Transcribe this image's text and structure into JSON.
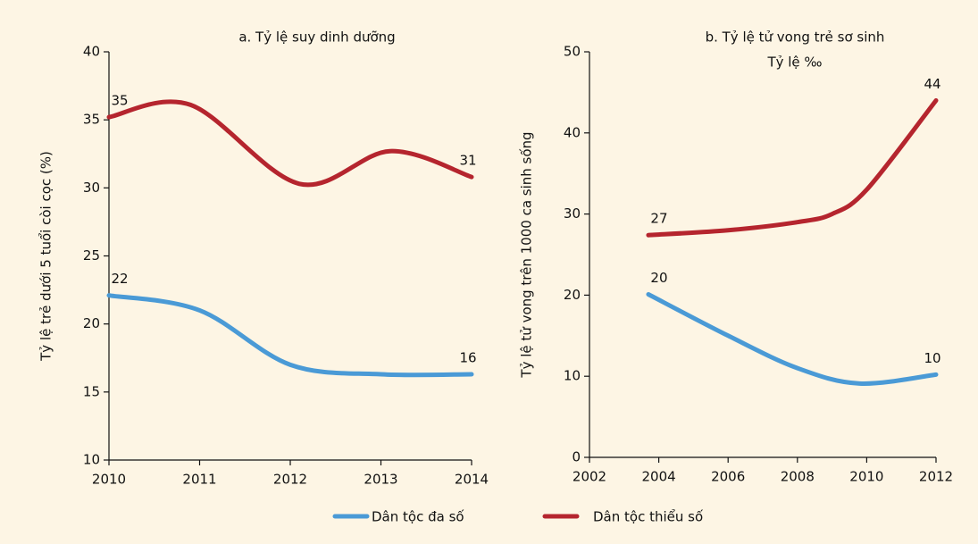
{
  "chart_data": [
    {
      "type": "line",
      "title": "a. Tỷ lệ suy dinh dưỡng",
      "y_label": "Tỷ lệ trẻ dưới 5 tuổi còi cọc (%)",
      "xlim": [
        2010,
        2014
      ],
      "xticks": [
        2010,
        2011,
        2012,
        2013,
        2014
      ],
      "ylim": [
        10,
        40
      ],
      "yticks": [
        10,
        15,
        20,
        25,
        30,
        35,
        40
      ],
      "series": [
        {
          "name": "Dân tộc đa số",
          "color": "#4a9ad6",
          "x": [
            2010,
            2011,
            2012,
            2013,
            2014
          ],
          "values": [
            22.1,
            21,
            17,
            16.3,
            16.3
          ],
          "value_labels": [
            "22",
            null,
            null,
            null,
            "16"
          ]
        },
        {
          "name": "Dân tộc thiểu số",
          "color": "#b5252e",
          "x": [
            2010,
            2010.9,
            2012.1,
            2013.1,
            2014
          ],
          "values": [
            35.2,
            36.1,
            30.3,
            32.7,
            30.8
          ],
          "value_labels": [
            "35",
            null,
            null,
            null,
            "31"
          ]
        }
      ]
    },
    {
      "type": "line",
      "title": "b. Tỷ lệ tử vong trẻ sơ sinh",
      "subtitle": "Tỷ lệ ‰",
      "y_label": "Tỷ lệ tử vong trên 1000 ca sinh sống",
      "xlim": [
        2002,
        2012
      ],
      "xticks": [
        2002,
        2004,
        2006,
        2008,
        2010,
        2012
      ],
      "ylim": [
        0,
        50
      ],
      "yticks": [
        0,
        10,
        20,
        30,
        40,
        50
      ],
      "series": [
        {
          "color": "#4a9ad6",
          "x": [
            2003.7,
            2006,
            2008,
            2009.8,
            2012
          ],
          "values": [
            20.1,
            15,
            11,
            9.1,
            10.2
          ],
          "value_labels": [
            "20",
            null,
            null,
            null,
            "10"
          ]
        },
        {
          "color": "#b5252e",
          "x": [
            2003.7,
            2006,
            2008,
            2009,
            2010,
            2012
          ],
          "values": [
            27.4,
            28,
            29,
            30,
            33,
            44
          ],
          "value_labels": [
            "27",
            null,
            null,
            null,
            null,
            "44"
          ]
        }
      ]
    }
  ]
}
